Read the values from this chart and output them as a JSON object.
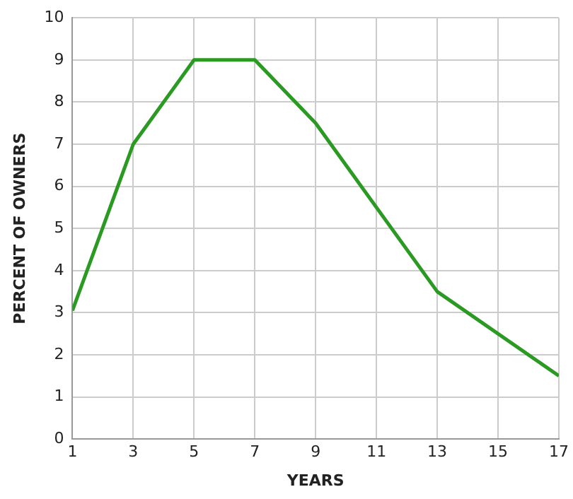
{
  "chart_data": {
    "type": "line",
    "xlabel": "YEARS",
    "ylabel": "PERCENT OF OWNERS",
    "x": [
      1,
      3,
      5,
      7,
      9,
      13,
      17
    ],
    "series": [
      {
        "color": "#2a9a22",
        "values": [
          3.05,
          7,
          9,
          9,
          7.5,
          3.5,
          1.5
        ]
      }
    ],
    "xlim": [
      1,
      17
    ],
    "xticks": [
      1,
      3,
      5,
      7,
      9,
      11,
      13,
      15,
      17
    ],
    "ylim": [
      0,
      10
    ],
    "yticks": [
      0,
      1,
      2,
      3,
      4,
      5,
      6,
      7,
      8,
      9,
      10
    ],
    "grid": true,
    "legend": false,
    "marker": "none",
    "line_style": "solid"
  }
}
